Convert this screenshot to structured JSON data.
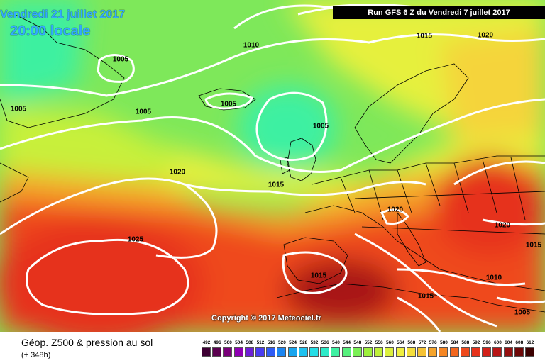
{
  "header": {
    "date": "Vendredi 21 juillet 2017",
    "time": "20:00 locale",
    "run": "Run GFS 6 Z du Vendredi 7 juillet 2017"
  },
  "copyright": "Copyright © 2017 Meteociel.fr",
  "isobars": [
    "1005",
    "1005",
    "1005",
    "1010",
    "1015",
    "1020",
    "1005",
    "1005",
    "1020",
    "1015",
    "1025",
    "1020",
    "1015",
    "1020",
    "1015",
    "1010",
    "1005",
    "1015"
  ],
  "footer": {
    "title": "Géop. Z500 & pression au sol",
    "subtitle": "(+ 348h)"
  },
  "legend": {
    "ticks": [
      "492",
      "496",
      "500",
      "504",
      "508",
      "512",
      "516",
      "520",
      "524",
      "528",
      "532",
      "536",
      "540",
      "544",
      "548",
      "552",
      "556",
      "560",
      "564",
      "568",
      "572",
      "576",
      "580",
      "584",
      "588",
      "592",
      "596",
      "600",
      "604",
      "608",
      "612"
    ],
    "colors": [
      "#3d0033",
      "#5a004f",
      "#7a007a",
      "#8f00b3",
      "#6e1fd6",
      "#4a3cf0",
      "#2f5cf5",
      "#1c86f2",
      "#18a5ef",
      "#1fc2f0",
      "#24dde6",
      "#2ceac8",
      "#3ef0a2",
      "#57f07d",
      "#7af055",
      "#9df03c",
      "#bff03a",
      "#dcf03d",
      "#f0f03f",
      "#f5df3c",
      "#f5c234",
      "#f5a42c",
      "#f58624",
      "#f3661e",
      "#ef4a1c",
      "#e6321b",
      "#d22019",
      "#b81616",
      "#961010",
      "#6e0808",
      "#3c0000"
    ]
  }
}
